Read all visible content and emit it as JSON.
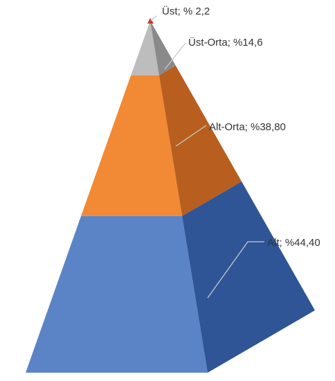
{
  "chart_data": {
    "type": "pyramid",
    "series": [
      {
        "label": "Üst; % 2,2",
        "value": 2.2,
        "color": "#c0392b",
        "side_color": "#8e2a20"
      },
      {
        "label": "Üst-Orta; %14,6",
        "value": 14.6,
        "color": "#bdbdbd",
        "side_color": "#8a8a8a"
      },
      {
        "label": "Alt-Orta; %38,80",
        "value": 38.8,
        "color": "#f28a35",
        "side_color": "#b85f1f"
      },
      {
        "label": "Alt; %44,40",
        "value": 44.4,
        "color": "#5b84c6",
        "side_color": "#2f5597"
      }
    ]
  }
}
